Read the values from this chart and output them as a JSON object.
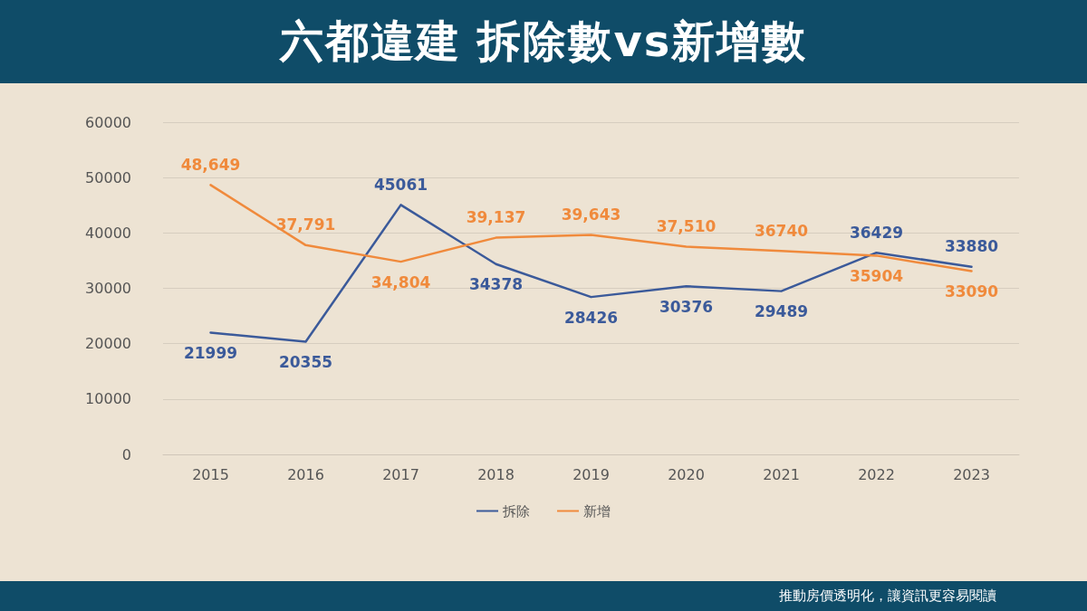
{
  "chart_data": {
    "type": "line",
    "title": "六都違建 拆除數vs新增數",
    "categories": [
      "2015",
      "2016",
      "2017",
      "2018",
      "2019",
      "2020",
      "2021",
      "2022",
      "2023"
    ],
    "series": [
      {
        "name": "拆除",
        "color": "#3b5a9a",
        "values": [
          21999,
          20355,
          45061,
          34378,
          28426,
          30376,
          29489,
          36429,
          33880
        ],
        "value_labels": [
          "21999",
          "20355",
          "45061",
          "34378",
          "28426",
          "30376",
          "29489",
          "36429",
          "33880"
        ]
      },
      {
        "name": "新增",
        "color": "#f08a3c",
        "values": [
          48649,
          37791,
          34804,
          39137,
          39643,
          37510,
          36740,
          35904,
          33090
        ],
        "value_labels": [
          "48,649",
          "37,791",
          "34,804",
          "39,137",
          "39,643",
          "37,510",
          "36740",
          "35904",
          "33090"
        ]
      }
    ],
    "ylim": [
      0,
      60000
    ],
    "yticks": [
      0,
      10000,
      20000,
      30000,
      40000,
      50000,
      60000
    ],
    "grid": "y",
    "legend": "bottom",
    "marker": "none",
    "line_style": "solid",
    "annotations": [
      "推動房價透明化，讓資訊更容易閱讀"
    ]
  }
}
